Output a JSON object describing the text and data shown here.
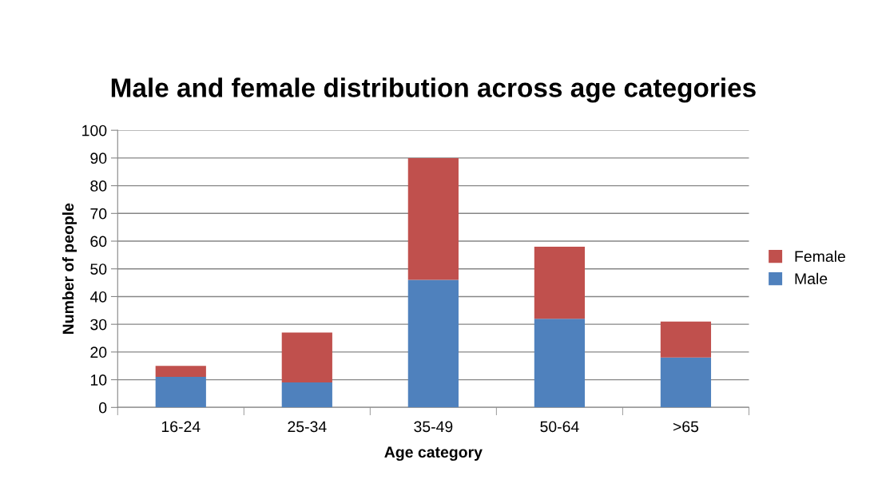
{
  "chart_data": {
    "type": "bar",
    "title": "Male and female distribution across age categories",
    "xlabel": "Age category",
    "ylabel": "Number of people",
    "categories": [
      "16-24",
      "25-34",
      "35-49",
      "50-64",
      ">65"
    ],
    "series": [
      {
        "name": "Male",
        "color": "#4f81bd",
        "values": [
          11,
          9,
          46,
          32,
          18
        ]
      },
      {
        "name": "Female",
        "color": "#c0504d",
        "values": [
          4,
          18,
          44,
          26,
          13
        ]
      }
    ],
    "stacked": true,
    "ylim": [
      0,
      100
    ],
    "yticks": [
      0,
      10,
      20,
      30,
      40,
      50,
      60,
      70,
      80,
      90,
      100
    ],
    "grid": "y",
    "legend": "right"
  }
}
